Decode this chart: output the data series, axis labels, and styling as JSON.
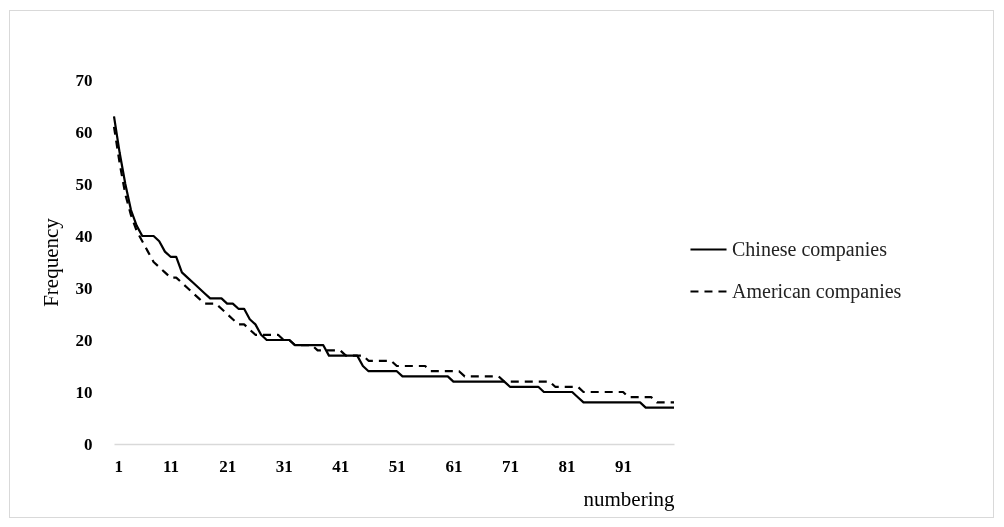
{
  "chart_data": {
    "type": "line",
    "xlabel": "numbering",
    "ylabel": "Frequency",
    "x": [
      1,
      2,
      3,
      4,
      5,
      6,
      7,
      8,
      9,
      10,
      11,
      12,
      13,
      14,
      15,
      16,
      17,
      18,
      19,
      20,
      21,
      22,
      23,
      24,
      25,
      26,
      27,
      28,
      29,
      30,
      31,
      32,
      33,
      34,
      35,
      36,
      37,
      38,
      39,
      40,
      41,
      42,
      43,
      44,
      45,
      46,
      47,
      48,
      49,
      50,
      51,
      52,
      53,
      54,
      55,
      56,
      57,
      58,
      59,
      60,
      61,
      62,
      63,
      64,
      65,
      66,
      67,
      68,
      69,
      70,
      71,
      72,
      73,
      74,
      75,
      76,
      77,
      78,
      79,
      80,
      81,
      82,
      83,
      84,
      85,
      86,
      87,
      88,
      89,
      90,
      91,
      92,
      93,
      94,
      95,
      96,
      97,
      98,
      99,
      100
    ],
    "series": [
      {
        "name": "Chinese companies",
        "color": "#000000",
        "line_style": "solid",
        "values": [
          63,
          56,
          50,
          45,
          42,
          40,
          40,
          40,
          39,
          37,
          36,
          36,
          33,
          32,
          31,
          30,
          29,
          28,
          28,
          28,
          27,
          27,
          26,
          26,
          24,
          23,
          21,
          20,
          20,
          20,
          20,
          20,
          19,
          19,
          19,
          19,
          19,
          19,
          17,
          17,
          17,
          17,
          17,
          17,
          15,
          14,
          14,
          14,
          14,
          14,
          14,
          13,
          13,
          13,
          13,
          13,
          13,
          13,
          13,
          13,
          12,
          12,
          12,
          12,
          12,
          12,
          12,
          12,
          12,
          12,
          11,
          11,
          11,
          11,
          11,
          11,
          10,
          10,
          10,
          10,
          10,
          10,
          9,
          8,
          8,
          8,
          8,
          8,
          8,
          8,
          8,
          8,
          8,
          8,
          7,
          7,
          7,
          7,
          7,
          7
        ]
      },
      {
        "name": "American companies",
        "color": "#000000",
        "line_style": "dashed",
        "values": [
          61,
          54,
          48,
          44,
          41,
          39,
          37,
          35,
          34,
          33,
          32,
          32,
          31,
          30,
          29,
          28,
          27,
          27,
          27,
          26,
          25,
          24,
          23,
          23,
          22,
          21,
          21,
          21,
          21,
          21,
          20,
          20,
          19,
          19,
          19,
          19,
          18,
          18,
          18,
          18,
          18,
          17,
          17,
          17,
          17,
          16,
          16,
          16,
          16,
          16,
          15,
          15,
          15,
          15,
          15,
          15,
          14,
          14,
          14,
          14,
          14,
          14,
          13,
          13,
          13,
          13,
          13,
          13,
          13,
          12,
          12,
          12,
          12,
          12,
          12,
          12,
          12,
          12,
          11,
          11,
          11,
          11,
          11,
          10,
          10,
          10,
          10,
          10,
          10,
          10,
          10,
          9,
          9,
          9,
          9,
          9,
          8,
          8,
          8,
          8
        ]
      }
    ],
    "xlim": [
      1,
      100
    ],
    "xticks": [
      1,
      11,
      21,
      31,
      41,
      51,
      61,
      71,
      81,
      91
    ],
    "ylim": [
      0,
      70
    ],
    "yticks": [
      0,
      10,
      20,
      30,
      40,
      50,
      60,
      70
    ],
    "legend": "right"
  }
}
